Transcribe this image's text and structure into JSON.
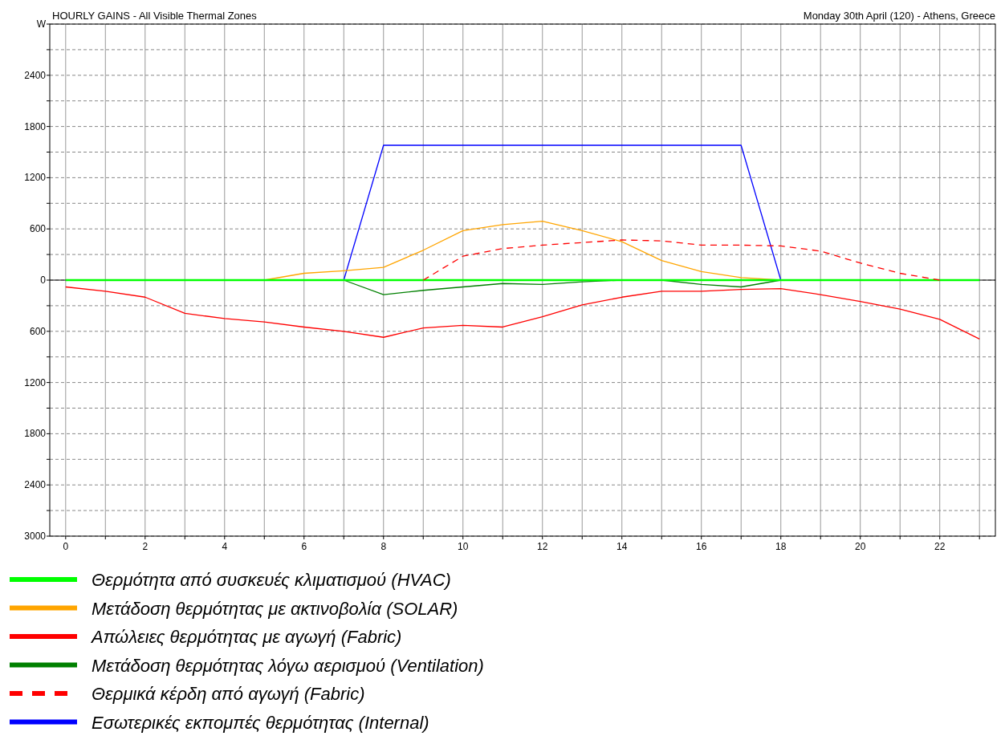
{
  "chart_data": {
    "type": "line",
    "title": "HOURLY GAINS - All Visible Thermal Zones",
    "subtitle": "Monday 30th April (120) - Athens, Greece",
    "x": [
      0,
      1,
      2,
      3,
      4,
      5,
      6,
      7,
      8,
      9,
      10,
      11,
      12,
      13,
      14,
      15,
      16,
      17,
      18,
      19,
      20,
      21,
      22,
      23
    ],
    "xlim": [
      -0.4,
      23.4
    ],
    "xticks": [
      0,
      {
        "value": 1,
        "label": null
      },
      2,
      {
        "value": 3,
        "label": null
      },
      4,
      {
        "value": 5,
        "label": null
      },
      6,
      {
        "value": 7,
        "label": null
      },
      8,
      {
        "value": 9,
        "label": null
      },
      10,
      {
        "value": 11,
        "label": null
      },
      12,
      {
        "value": 13,
        "label": null
      },
      14,
      {
        "value": 15,
        "label": null
      },
      16,
      {
        "value": 17,
        "label": null
      },
      18,
      {
        "value": 19,
        "label": null
      },
      20,
      {
        "value": 21,
        "label": null
      },
      22,
      {
        "value": 23,
        "label": null
      }
    ],
    "ylim": [
      -3000,
      3000
    ],
    "yticks": [
      {
        "value": -3000,
        "label": "3000"
      },
      {
        "value": -2700,
        "label": null
      },
      {
        "value": -2400,
        "label": "2400"
      },
      {
        "value": -2100,
        "label": null
      },
      {
        "value": -1800,
        "label": "1800"
      },
      {
        "value": -1500,
        "label": null
      },
      {
        "value": -1200,
        "label": "1200"
      },
      {
        "value": -900,
        "label": null
      },
      {
        "value": -600,
        "label": "600"
      },
      {
        "value": -300,
        "label": null
      },
      0,
      {
        "value": 300,
        "label": null
      },
      600,
      {
        "value": 900,
        "label": null
      },
      1200,
      {
        "value": 1500,
        "label": null
      },
      1800,
      {
        "value": 2100,
        "label": null
      },
      2400,
      {
        "value": 2700,
        "label": null
      },
      {
        "value": 3000,
        "label": "W"
      }
    ],
    "grid": true,
    "legend": "bottom",
    "series": [
      {
        "name": "Θερμότητα από συσκευές κλιματισμού (HVAC)",
        "color": "#00ff00",
        "values": [
          0,
          0,
          0,
          0,
          0,
          0,
          0,
          0,
          0,
          0,
          0,
          0,
          0,
          0,
          0,
          0,
          0,
          0,
          0,
          0,
          0,
          0,
          0,
          0
        ]
      },
      {
        "name": "Μετάδοση θερμότητας με ακτινοβολία (SOLAR)",
        "color": "#ffa500",
        "values": [
          null,
          null,
          null,
          null,
          null,
          0,
          80,
          110,
          150,
          350,
          580,
          650,
          690,
          580,
          450,
          230,
          100,
          30,
          0,
          null,
          null,
          null,
          null,
          null
        ]
      },
      {
        "name": "Απώλειες θερμότητας με αγωγή (Fabric)",
        "color": "#ff0000",
        "values": [
          -80,
          -130,
          -200,
          -390,
          -450,
          -490,
          -550,
          -600,
          -670,
          -560,
          -530,
          -550,
          -430,
          -290,
          -200,
          -130,
          -130,
          -110,
          -100,
          -170,
          -250,
          -340,
          -460,
          -690
        ]
      },
      {
        "name": "Μετάδοση θερμότητας λόγω αερισμού (Ventilation)",
        "color": "#008000",
        "values": [
          null,
          null,
          null,
          null,
          null,
          null,
          null,
          0,
          -170,
          -120,
          -80,
          -40,
          -50,
          -20,
          0,
          0,
          -50,
          -80,
          0,
          null,
          null,
          null,
          null,
          null
        ]
      },
      {
        "name": "Θερμικά κέρδη από αγωγή (Fabric)",
        "color": "#ff0000",
        "line_style": "dashed",
        "values": [
          null,
          null,
          null,
          null,
          null,
          null,
          null,
          null,
          null,
          0,
          280,
          370,
          410,
          440,
          470,
          460,
          410,
          410,
          400,
          340,
          200,
          80,
          0,
          null
        ]
      },
      {
        "name": "Εσωτερικές εκπομπές θερμότητας (Internal)",
        "color": "#0000ff",
        "values": [
          null,
          null,
          null,
          null,
          null,
          null,
          null,
          0,
          1580,
          1580,
          1580,
          1580,
          1580,
          1580,
          1580,
          1580,
          1580,
          1580,
          0,
          null,
          null,
          null,
          null,
          null
        ]
      }
    ]
  }
}
